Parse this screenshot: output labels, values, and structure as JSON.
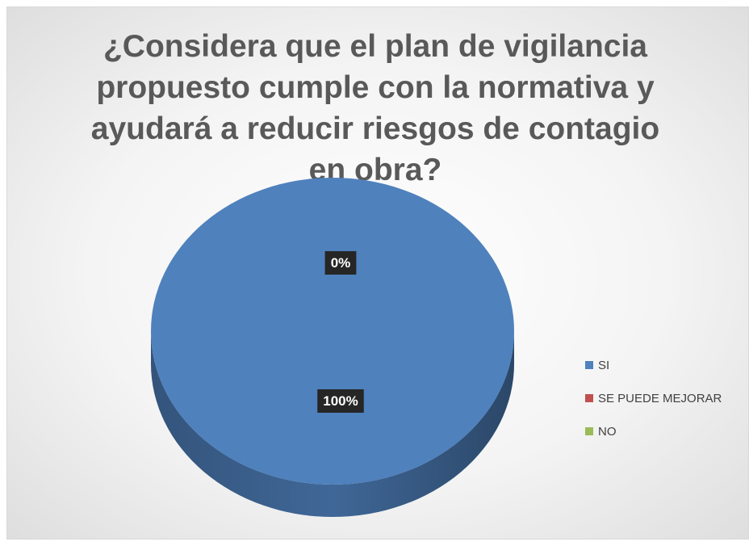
{
  "chart_data": {
    "type": "pie",
    "title": "¿Considera que el plan de vigilancia propuesto cumple con la normativa y ayudará a reducir riesgos de contagio en obra?",
    "categories": [
      "SI",
      "SE PUEDE MEJORAR",
      "NO"
    ],
    "values": [
      100,
      0,
      0
    ],
    "value_labels": [
      "100%",
      "0%",
      "0%"
    ],
    "colors": [
      "#4f81bd",
      "#c0504d",
      "#9bbb59"
    ],
    "legend": "right"
  }
}
